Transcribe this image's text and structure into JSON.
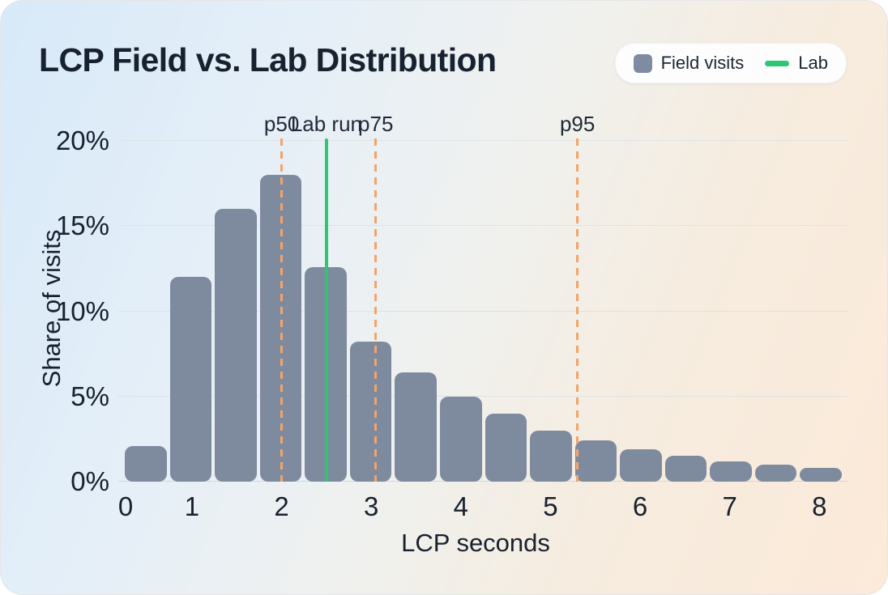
{
  "card": {
    "title": "LCP Field vs. Lab Distribution"
  },
  "legend": {
    "items": [
      {
        "label": "Field visits",
        "swatch": "square",
        "color": "#7e8ba0"
      },
      {
        "label": "Lab",
        "swatch": "line",
        "color": "#2ec573"
      }
    ]
  },
  "colors": {
    "bar": "#7e8b9f",
    "lab_line_green": "#2ec573",
    "percentile_dash_orange": "#f3a469",
    "background_top_left": "#d7e9f8",
    "background_bottom_right": "#fcead9"
  },
  "chart_data": {
    "type": "bar",
    "title": "LCP Field vs. Lab Distribution",
    "xlabel": "LCP seconds",
    "ylabel": "Share of visits",
    "ylim": [
      0,
      20
    ],
    "grid": true,
    "legend_position": "top-right",
    "y_ticks": {
      "values": [
        0,
        5,
        10,
        15,
        20
      ],
      "labels": [
        "0%",
        "5%",
        "10%",
        "15%",
        "20%"
      ]
    },
    "x_ticks": {
      "values": [
        0,
        1,
        2,
        3,
        4,
        5,
        6,
        7,
        8
      ],
      "labels": [
        "0",
        "1",
        "2",
        "3",
        "4",
        "5",
        "6",
        "7",
        "8"
      ]
    },
    "series": [
      {
        "name": "Field visits",
        "type": "histogram-bars",
        "color": "#7e8b9f",
        "bin_width_seconds": 0.5,
        "bin_start_seconds": [
          0,
          0.5,
          1,
          1.5,
          2,
          2.5,
          3,
          3.5,
          4,
          4.5,
          5,
          5.5,
          6,
          6.5,
          7,
          7.5
        ],
        "values_percent": [
          2.1,
          12,
          16,
          18,
          12.6,
          8.2,
          6.4,
          5,
          4,
          3,
          2.4,
          1.9,
          1.5,
          1.2,
          1.0,
          0.8
        ]
      }
    ],
    "markers": [
      {
        "label": "p50",
        "seconds": 2.0,
        "style": "dashed",
        "color": "#f3a469"
      },
      {
        "label": "Lab run",
        "seconds": 2.5,
        "style": "solid",
        "color": "#2ec573"
      },
      {
        "label": "p75",
        "seconds": 3.05,
        "style": "dashed",
        "color": "#f3a469"
      },
      {
        "label": "p95",
        "seconds": 5.3,
        "style": "dashed",
        "color": "#f3a469"
      }
    ]
  }
}
